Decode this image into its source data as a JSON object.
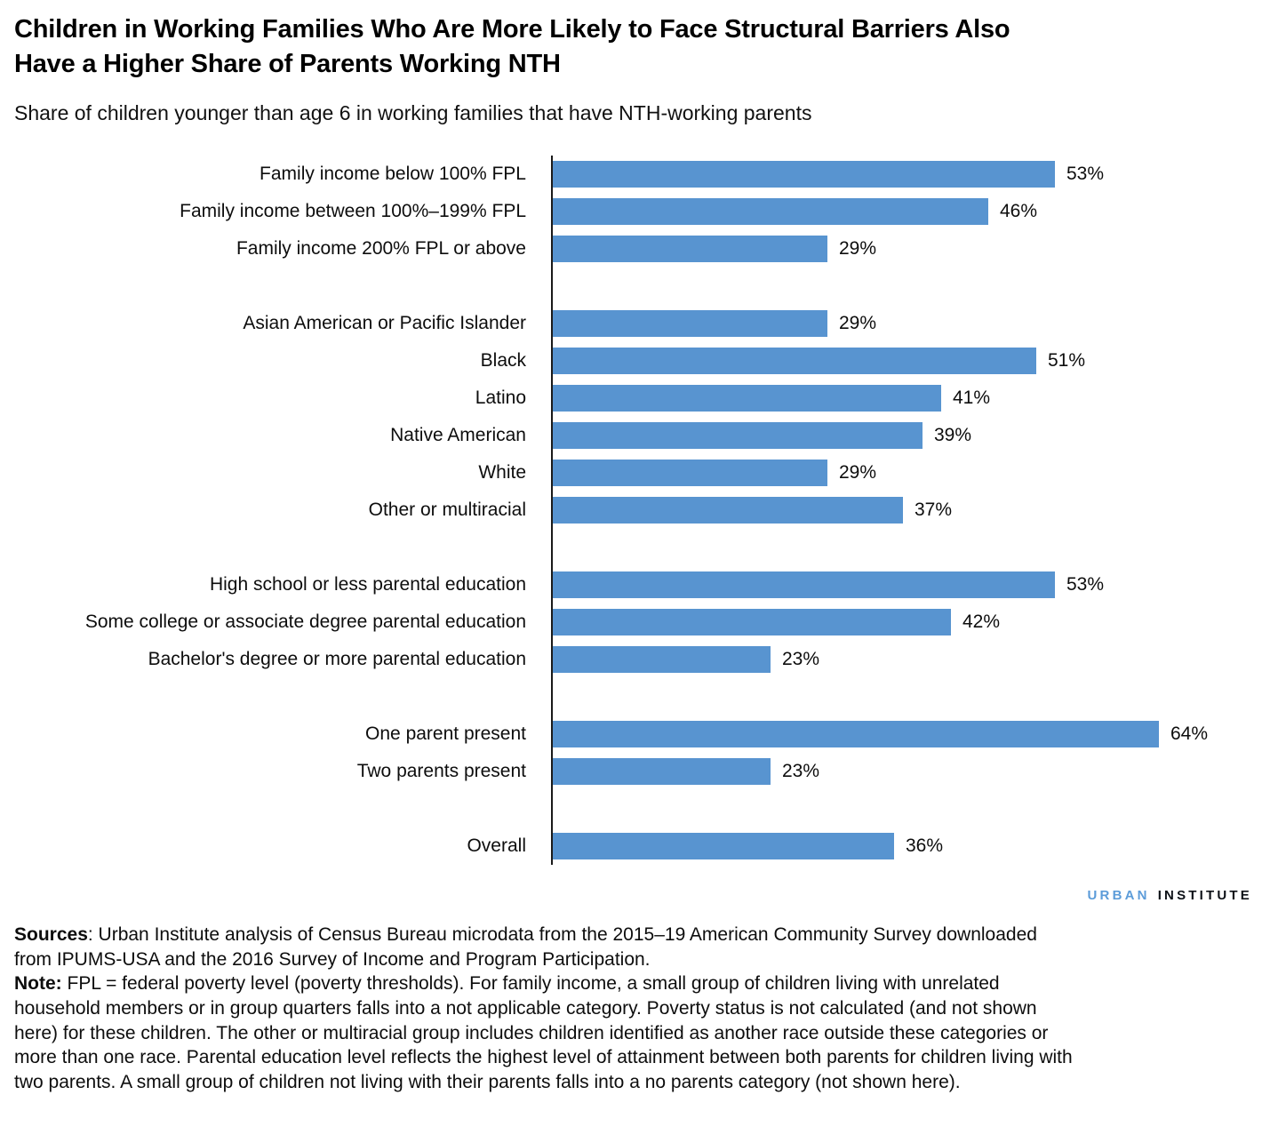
{
  "chart_data": {
    "type": "bar",
    "orientation": "horizontal",
    "title": "Children in Working Families Who Are More Likely to Face Structural Barriers Also\nHave a Higher Share of Parents Working NTH",
    "subtitle": "Share of children younger than age 6 in working families that have NTH-working parents",
    "value_suffix": "%",
    "bar_color": "#5894d0",
    "axis_color": "#1a1a1a",
    "xlim": [
      0,
      72
    ],
    "grid": false,
    "legend": false,
    "groups": [
      {
        "name": "family-income",
        "items": [
          {
            "label": "Family income below 100% FPL",
            "value": 53
          },
          {
            "label": "Family income between 100%–199% FPL",
            "value": 46
          },
          {
            "label": "Family income 200% FPL or above",
            "value": 29
          }
        ]
      },
      {
        "name": "race-ethnicity",
        "items": [
          {
            "label": "Asian American or Pacific Islander",
            "value": 29
          },
          {
            "label": "Black",
            "value": 51
          },
          {
            "label": "Latino",
            "value": 41
          },
          {
            "label": "Native American",
            "value": 39
          },
          {
            "label": "White",
            "value": 29
          },
          {
            "label": "Other or multiracial",
            "value": 37
          }
        ]
      },
      {
        "name": "parental-education",
        "items": [
          {
            "label": "High school or less parental education",
            "value": 53
          },
          {
            "label": "Some college or associate degree parental education",
            "value": 42
          },
          {
            "label": "Bachelor's degree or more parental education",
            "value": 23
          }
        ]
      },
      {
        "name": "parents-present",
        "items": [
          {
            "label": "One parent present",
            "value": 64
          },
          {
            "label": "Two parents present",
            "value": 23
          }
        ]
      },
      {
        "name": "overall",
        "items": [
          {
            "label": "Overall",
            "value": 36
          }
        ]
      }
    ]
  },
  "logo": {
    "urban": "URBAN",
    "institute": "INSTITUTE",
    "urban_color": "#5c9cd9"
  },
  "footer": {
    "sources_label": "Sources",
    "sources_text": ": Urban Institute analysis of Census Bureau microdata from the 2015–19 American Community Survey downloaded from IPUMS-USA and the 2016 Survey of Income and Program Participation.",
    "note_label": "Note:",
    "note_text": " FPL = federal poverty level (poverty thresholds). For family income, a small group of children living with unrelated household members or in group quarters falls into a not applicable category. Poverty status is not calculated (and not shown here) for these children. The other or multiracial group includes children identified as another race outside these categories or more than one race. Parental education level reflects the highest level of attainment between both parents for children living with two parents. A small group of children not living with their parents falls into a no parents category (not shown here)."
  }
}
